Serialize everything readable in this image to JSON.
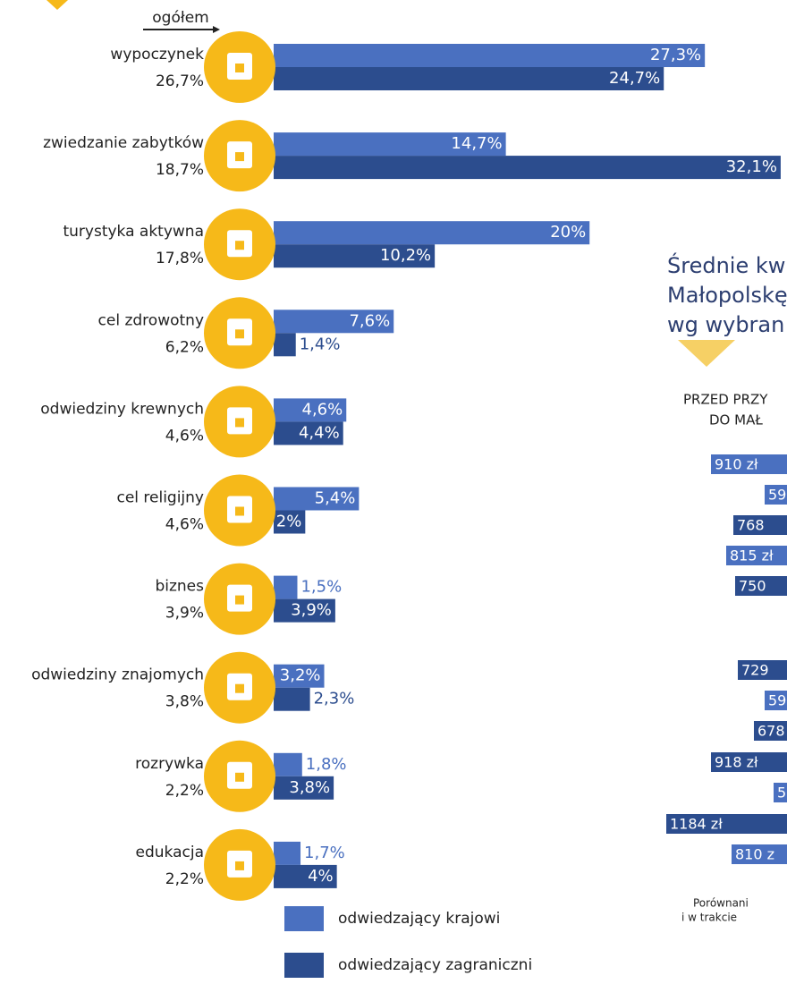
{
  "chart_data": {
    "type": "grouped-hbar",
    "total_heading": "ogółem",
    "categories": [
      "wypoczynek",
      "zwiedzanie zabytków",
      "turystyka aktywna",
      "cel zdrowotny",
      "odwiedziny krewnych",
      "cel religijny",
      "biznes",
      "odwiedziny znajomych",
      "rozrywka",
      "edukacja"
    ],
    "totals": [
      "26,7%",
      "18,7%",
      "17,8%",
      "6,2%",
      "4,6%",
      "4,6%",
      "3,9%",
      "3,8%",
      "2,2%",
      "2,2%"
    ],
    "xlim": [
      0,
      32.5
    ],
    "icon_color": "#f6b919",
    "series": [
      {
        "name": "odwiedzający krajowi",
        "color": "#4a70c0",
        "values": [
          27.3,
          14.7,
          20,
          7.6,
          4.6,
          5.4,
          1.5,
          3.2,
          1.8,
          1.7
        ],
        "value_labels": [
          "27,3%",
          "14,7%",
          "20%",
          "7,6%",
          "4,6%",
          "5,4%",
          "1,5%",
          "3,2%",
          "1,8%",
          "1,7%"
        ]
      },
      {
        "name": "odwiedzający zagraniczni",
        "color": "#2c4d8e",
        "values": [
          24.7,
          32.1,
          10.2,
          1.4,
          4.4,
          2,
          3.9,
          2.3,
          3.8,
          4
        ],
        "value_labels": [
          "24,7%",
          "32,1%",
          "10,2%",
          "1,4%",
          "4,4%",
          "2%",
          "3,9%",
          "2,3%",
          "3,8%",
          "4%"
        ]
      }
    ]
  },
  "side_panel": {
    "title_lines": [
      "Średnie kw",
      "Małopolskę",
      "wg wybran"
    ],
    "header_lines": [
      "PRZED  PRZY",
      "DO MAŁ"
    ],
    "amounts": [
      {
        "label": "910 zł",
        "color": "#4a70c0"
      },
      {
        "label": "59",
        "color": "#4a70c0"
      },
      {
        "label": "768",
        "color": "#2c4d8e"
      },
      {
        "label": "815 zł",
        "color": "#4a70c0"
      },
      {
        "label": "750",
        "color": "#2c4d8e"
      },
      {
        "label": "729",
        "color": "#2c4d8e"
      },
      {
        "label": "59",
        "color": "#4a70c0"
      },
      {
        "label": "678",
        "color": "#2c4d8e"
      },
      {
        "label": "918 zł",
        "color": "#2c4d8e"
      },
      {
        "label": "5",
        "color": "#4a70c0"
      },
      {
        "label": "1184 zł",
        "color": "#2c4d8e"
      },
      {
        "label": "810 z",
        "color": "#4a70c0"
      }
    ],
    "footnote_lines": [
      "Porównani",
      "i w trakcie"
    ]
  }
}
